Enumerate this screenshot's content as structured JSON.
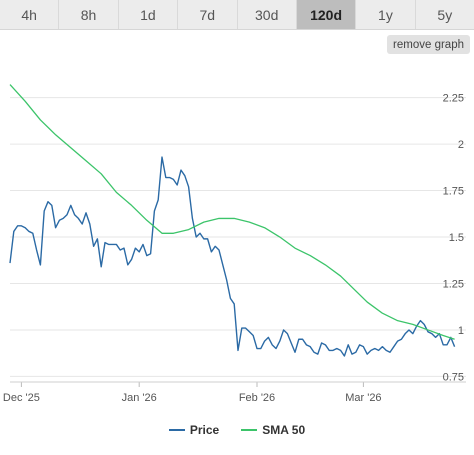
{
  "range_tabs": [
    {
      "label": "4h",
      "active": false
    },
    {
      "label": "8h",
      "active": false
    },
    {
      "label": "1d",
      "active": false
    },
    {
      "label": "7d",
      "active": false
    },
    {
      "label": "30d",
      "active": false
    },
    {
      "label": "120d",
      "active": true
    },
    {
      "label": "1y",
      "active": false
    },
    {
      "label": "5y",
      "active": false
    }
  ],
  "remove_graph_label": "remove graph",
  "colors": {
    "price": "#2b6aa5",
    "sma": "#3cc46a",
    "grid": "#e6e6e6"
  },
  "chart_data": {
    "type": "line",
    "title": "",
    "xlabel": "",
    "ylabel": "",
    "ylim": [
      0.72,
      2.42
    ],
    "xlim": [
      "2025-11-28",
      "2026-03-28"
    ],
    "y_ticks": [
      {
        "value": 0.75,
        "label": "0.75"
      },
      {
        "value": 1,
        "label": "1"
      },
      {
        "value": 1.25,
        "label": "1.25"
      },
      {
        "value": 1.5,
        "label": "1.5"
      },
      {
        "value": 1.75,
        "label": "1.75"
      },
      {
        "value": 2,
        "label": "2"
      },
      {
        "value": 2.25,
        "label": "2.25"
      }
    ],
    "x_ticks": [
      {
        "date": "2025-12-01",
        "label": "Dec '25"
      },
      {
        "date": "2026-01-01",
        "label": "Jan '26"
      },
      {
        "date": "2026-02-01",
        "label": "Feb '26"
      },
      {
        "date": "2026-03-01",
        "label": "Mar '26"
      }
    ],
    "legend": "bottom",
    "grid": true,
    "series": [
      {
        "name": "Price",
        "points": [
          [
            "2025-11-28",
            1.36
          ],
          [
            "2025-11-29",
            1.53
          ],
          [
            "2025-11-30",
            1.56
          ],
          [
            "2025-12-01",
            1.56
          ],
          [
            "2025-12-02",
            1.55
          ],
          [
            "2025-12-03",
            1.53
          ],
          [
            "2025-12-04",
            1.52
          ],
          [
            "2025-12-05",
            1.43
          ],
          [
            "2025-12-06",
            1.35
          ],
          [
            "2025-12-07",
            1.64
          ],
          [
            "2025-12-08",
            1.69
          ],
          [
            "2025-12-09",
            1.67
          ],
          [
            "2025-12-10",
            1.55
          ],
          [
            "2025-12-11",
            1.59
          ],
          [
            "2025-12-12",
            1.6
          ],
          [
            "2025-12-13",
            1.62
          ],
          [
            "2025-12-14",
            1.67
          ],
          [
            "2025-12-15",
            1.62
          ],
          [
            "2025-12-16",
            1.6
          ],
          [
            "2025-12-17",
            1.57
          ],
          [
            "2025-12-18",
            1.63
          ],
          [
            "2025-12-19",
            1.57
          ],
          [
            "2025-12-20",
            1.45
          ],
          [
            "2025-12-21",
            1.49
          ],
          [
            "2025-12-22",
            1.34
          ],
          [
            "2025-12-23",
            1.47
          ],
          [
            "2025-12-24",
            1.46
          ],
          [
            "2025-12-25",
            1.46
          ],
          [
            "2025-12-26",
            1.46
          ],
          [
            "2025-12-27",
            1.43
          ],
          [
            "2025-12-28",
            1.44
          ],
          [
            "2025-12-29",
            1.35
          ],
          [
            "2025-12-30",
            1.38
          ],
          [
            "2025-12-31",
            1.44
          ],
          [
            "2026-01-01",
            1.42
          ],
          [
            "2026-01-02",
            1.46
          ],
          [
            "2026-01-03",
            1.4
          ],
          [
            "2026-01-04",
            1.41
          ],
          [
            "2026-01-05",
            1.64
          ],
          [
            "2026-01-06",
            1.7
          ],
          [
            "2026-01-07",
            1.93
          ],
          [
            "2026-01-08",
            1.82
          ],
          [
            "2026-01-09",
            1.82
          ],
          [
            "2026-01-10",
            1.81
          ],
          [
            "2026-01-11",
            1.78
          ],
          [
            "2026-01-12",
            1.86
          ],
          [
            "2026-01-13",
            1.83
          ],
          [
            "2026-01-14",
            1.77
          ],
          [
            "2026-01-15",
            1.6
          ],
          [
            "2026-01-16",
            1.5
          ],
          [
            "2026-01-17",
            1.52
          ],
          [
            "2026-01-18",
            1.49
          ],
          [
            "2026-01-19",
            1.49
          ],
          [
            "2026-01-20",
            1.42
          ],
          [
            "2026-01-21",
            1.45
          ],
          [
            "2026-01-22",
            1.43
          ],
          [
            "2026-01-23",
            1.35
          ],
          [
            "2026-01-24",
            1.27
          ],
          [
            "2026-01-25",
            1.17
          ],
          [
            "2026-01-26",
            1.14
          ],
          [
            "2026-01-27",
            0.89
          ],
          [
            "2026-01-28",
            1.01
          ],
          [
            "2026-01-29",
            1.01
          ],
          [
            "2026-01-30",
            0.99
          ],
          [
            "2026-01-31",
            0.97
          ],
          [
            "2026-02-01",
            0.9
          ],
          [
            "2026-02-02",
            0.9
          ],
          [
            "2026-02-03",
            0.94
          ],
          [
            "2026-02-04",
            0.96
          ],
          [
            "2026-02-05",
            0.92
          ],
          [
            "2026-02-06",
            0.9
          ],
          [
            "2026-02-07",
            0.94
          ],
          [
            "2026-02-08",
            1.0
          ],
          [
            "2026-02-09",
            0.98
          ],
          [
            "2026-02-10",
            0.93
          ],
          [
            "2026-02-11",
            0.88
          ],
          [
            "2026-02-12",
            0.95
          ],
          [
            "2026-02-13",
            0.95
          ],
          [
            "2026-02-14",
            0.92
          ],
          [
            "2026-02-15",
            0.91
          ],
          [
            "2026-02-16",
            0.88
          ],
          [
            "2026-02-17",
            0.87
          ],
          [
            "2026-02-18",
            0.93
          ],
          [
            "2026-02-19",
            0.92
          ],
          [
            "2026-02-20",
            0.89
          ],
          [
            "2026-02-21",
            0.89
          ],
          [
            "2026-02-22",
            0.9
          ],
          [
            "2026-02-23",
            0.89
          ],
          [
            "2026-02-24",
            0.86
          ],
          [
            "2026-02-25",
            0.92
          ],
          [
            "2026-02-26",
            0.87
          ],
          [
            "2026-02-27",
            0.88
          ],
          [
            "2026-02-28",
            0.92
          ],
          [
            "2026-03-01",
            0.91
          ],
          [
            "2026-03-02",
            0.87
          ],
          [
            "2026-03-03",
            0.89
          ],
          [
            "2026-03-04",
            0.9
          ],
          [
            "2026-03-05",
            0.89
          ],
          [
            "2026-03-06",
            0.91
          ],
          [
            "2026-03-07",
            0.89
          ],
          [
            "2026-03-08",
            0.88
          ],
          [
            "2026-03-09",
            0.91
          ],
          [
            "2026-03-10",
            0.94
          ],
          [
            "2026-03-11",
            0.95
          ],
          [
            "2026-03-12",
            0.98
          ],
          [
            "2026-03-13",
            1.0
          ],
          [
            "2026-03-14",
            0.98
          ],
          [
            "2026-03-15",
            1.02
          ],
          [
            "2026-03-16",
            1.05
          ],
          [
            "2026-03-17",
            1.03
          ],
          [
            "2026-03-18",
            0.99
          ],
          [
            "2026-03-19",
            0.98
          ],
          [
            "2026-03-20",
            0.96
          ],
          [
            "2026-03-21",
            0.98
          ],
          [
            "2026-03-22",
            0.92
          ],
          [
            "2026-03-23",
            0.92
          ],
          [
            "2026-03-24",
            0.96
          ],
          [
            "2026-03-25",
            0.91
          ]
        ]
      },
      {
        "name": "SMA 50",
        "points": [
          [
            "2025-11-28",
            2.32
          ],
          [
            "2025-12-02",
            2.23
          ],
          [
            "2025-12-06",
            2.13
          ],
          [
            "2025-12-10",
            2.05
          ],
          [
            "2025-12-14",
            1.98
          ],
          [
            "2025-12-18",
            1.91
          ],
          [
            "2025-12-22",
            1.84
          ],
          [
            "2025-12-26",
            1.74
          ],
          [
            "2025-12-30",
            1.67
          ],
          [
            "2026-01-03",
            1.59
          ],
          [
            "2026-01-07",
            1.52
          ],
          [
            "2026-01-10",
            1.52
          ],
          [
            "2026-01-14",
            1.54
          ],
          [
            "2026-01-18",
            1.58
          ],
          [
            "2026-01-22",
            1.6
          ],
          [
            "2026-01-26",
            1.6
          ],
          [
            "2026-01-30",
            1.58
          ],
          [
            "2026-02-03",
            1.55
          ],
          [
            "2026-02-07",
            1.5
          ],
          [
            "2026-02-11",
            1.44
          ],
          [
            "2026-02-15",
            1.4
          ],
          [
            "2026-02-19",
            1.35
          ],
          [
            "2026-02-23",
            1.29
          ],
          [
            "2026-02-27",
            1.21
          ],
          [
            "2026-03-02",
            1.15
          ],
          [
            "2026-03-06",
            1.09
          ],
          [
            "2026-03-10",
            1.05
          ],
          [
            "2026-03-14",
            1.03
          ],
          [
            "2026-03-18",
            1.0
          ],
          [
            "2026-03-22",
            0.97
          ],
          [
            "2026-03-25",
            0.95
          ]
        ]
      }
    ]
  }
}
